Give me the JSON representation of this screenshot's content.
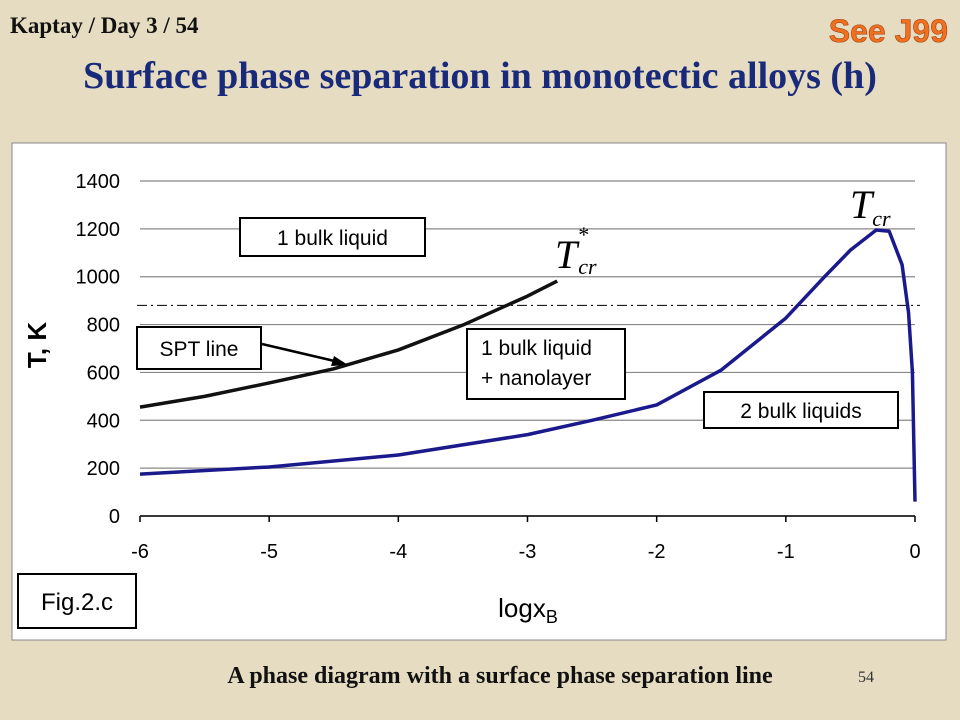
{
  "header": {
    "left": "Kaptay / Day 3 / 54",
    "right": "See J99",
    "title": "Surface phase separation in monotectic alloys (h)"
  },
  "caption": "A phase diagram with a surface phase separation line",
  "page_number": "54",
  "chart_data": {
    "type": "line",
    "xlabel": "logx",
    "xlabel_sub": "B",
    "ylabel": "T, K",
    "figure_label": "Fig.2.c",
    "xlim": [
      -6,
      0
    ],
    "ylim": [
      0,
      1400
    ],
    "xticks": [
      -6,
      -5,
      -4,
      -3,
      -2,
      -1,
      0
    ],
    "yticks": [
      0,
      200,
      400,
      600,
      800,
      1000,
      1200,
      1400
    ],
    "grid": true,
    "reference_line": 880,
    "series": [
      {
        "color": "#111111",
        "x": [
          -6,
          -5.5,
          -5,
          -4.5,
          -4,
          -3.5,
          -3,
          -2.77
        ],
        "values": [
          455,
          500,
          556,
          615,
          694,
          798,
          919,
          982
        ]
      },
      {
        "color": "#1a1a8c",
        "x": [
          -6,
          -5,
          -4,
          -3,
          -2.5,
          -2,
          -1.5,
          -1,
          -0.7,
          -0.5,
          -0.3,
          -0.2,
          -0.1,
          -0.05,
          -0.02,
          0
        ],
        "values": [
          175,
          205,
          255,
          340,
          400,
          464,
          610,
          827,
          1000,
          1111,
          1195,
          1190,
          1050,
          850,
          600,
          60
        ]
      }
    ],
    "annotations": [
      {
        "text": "1 bulk liquid"
      },
      {
        "text": "SPT line"
      },
      {
        "lines": [
          "1 bulk liquid",
          "+ nanolayer"
        ]
      },
      {
        "text": "2 bulk liquids"
      }
    ],
    "tcr_label": {
      "main": "T",
      "sub": "cr"
    },
    "tcr_star_label": {
      "main": "T",
      "sup": "*",
      "sub": "cr"
    }
  }
}
